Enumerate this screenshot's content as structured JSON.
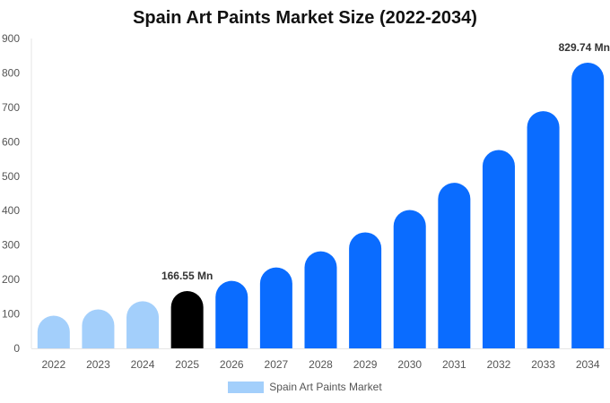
{
  "chart_data": {
    "type": "bar",
    "title": "Spain Art Paints Market Size (2022-2034)",
    "categories": [
      "2022",
      "2023",
      "2024",
      "2025",
      "2026",
      "2027",
      "2028",
      "2029",
      "2030",
      "2031",
      "2032",
      "2033",
      "2034"
    ],
    "series": [
      {
        "name": "Spain Art Paints Market",
        "values": [
          95,
          113,
          137,
          166.55,
          196,
          235,
          282,
          337,
          402,
          481,
          576,
          689,
          829.74
        ]
      }
    ],
    "ylim": [
      0,
      900
    ],
    "yticks": [
      0,
      100,
      200,
      300,
      400,
      500,
      600,
      700,
      800,
      900
    ],
    "data_labels": [
      {
        "index": 3,
        "text": "166.55 Mn"
      },
      {
        "index": 12,
        "text": "829.74 Mn"
      }
    ],
    "colors": {
      "historical": "#a3cffb",
      "current": "#000000",
      "forecast": "#0a6cff",
      "legend": "#a3cffb"
    },
    "bar_color_groups": [
      "historical",
      "historical",
      "historical",
      "current",
      "forecast",
      "forecast",
      "forecast",
      "forecast",
      "forecast",
      "forecast",
      "forecast",
      "forecast",
      "forecast"
    ],
    "legend_position": "bottom",
    "grid": false
  }
}
